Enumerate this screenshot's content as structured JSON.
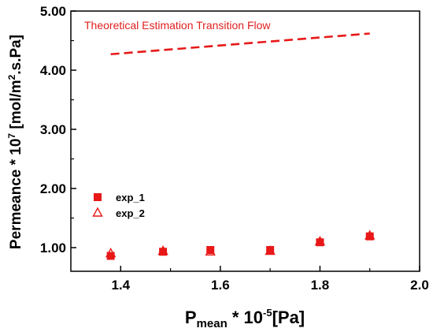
{
  "chart_data": {
    "type": "scatter",
    "xlabel": {
      "main": "P",
      "subscript": "mean",
      "mid": " * 10",
      "superscript": "-5",
      "unit": "[Pa]"
    },
    "ylabel": {
      "main": "Permeance * 10",
      "superscript": "7",
      "mid": " [mol/m",
      "superscript2": "2",
      "unit": ".s.Pa]"
    },
    "xlim": [
      1.3,
      2.0
    ],
    "ylim": [
      0.6,
      5.0
    ],
    "x_ticks": [
      "1.4",
      "1.6",
      "1.8",
      "2.0"
    ],
    "x_tick_values": [
      1.4,
      1.6,
      1.8,
      2.0
    ],
    "y_ticks": [
      "1.00",
      "2.00",
      "3.00",
      "4.00",
      "5.00"
    ],
    "y_tick_values": [
      1.0,
      2.0,
      3.0,
      4.0,
      5.0
    ],
    "grid": false,
    "legend_position": "center-left",
    "series": [
      {
        "name": "exp_1",
        "marker": "filled-square",
        "color": "#e81818",
        "x": [
          1.38,
          1.485,
          1.58,
          1.7,
          1.8,
          1.9
        ],
        "y": [
          0.86,
          0.93,
          0.96,
          0.96,
          1.09,
          1.19
        ]
      },
      {
        "name": "exp_2",
        "marker": "open-triangle",
        "color": "#e81818",
        "x": [
          1.38,
          1.485,
          1.58,
          1.7,
          1.8,
          1.9
        ],
        "y": [
          0.9,
          0.94,
          0.93,
          0.94,
          1.1,
          1.2
        ]
      },
      {
        "name": "Theoretical Estimation Transition Flow",
        "marker": "dashed-line",
        "color": "#e81818",
        "x": [
          1.38,
          1.9
        ],
        "y": [
          4.27,
          4.62
        ]
      }
    ],
    "annotation": "Theoretical Estimation Transition Flow"
  }
}
